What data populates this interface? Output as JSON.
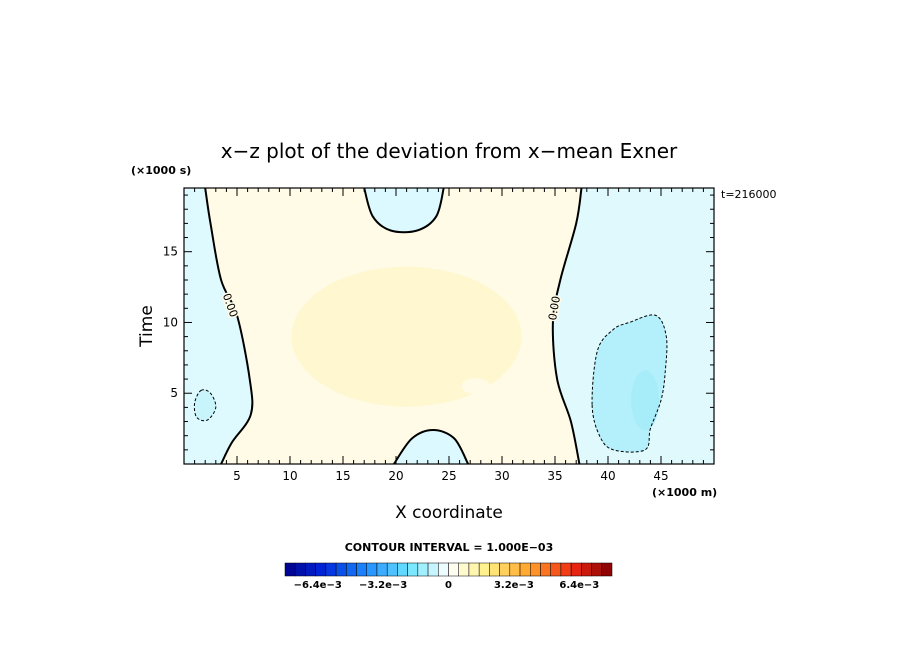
{
  "chart_data": {
    "type": "heatmap",
    "title": "x−z plot of the deviation from x−mean Exner",
    "xlabel": "X coordinate",
    "ylabel": "Time",
    "x_unit": "(×1000 m)",
    "y_unit": "(×1000 s)",
    "time_label": "t=216000",
    "contour_interval_label": "CONTOUR INTERVAL = 1.000E−03",
    "contour_interval": 0.001,
    "xlim": [
      0,
      50
    ],
    "ylim": [
      0,
      19.5
    ],
    "x_ticks": [
      5,
      10,
      15,
      20,
      25,
      30,
      35,
      40,
      45
    ],
    "y_ticks": [
      5,
      10,
      15
    ],
    "contour_labels": [
      "0.00",
      "0.00"
    ],
    "colorbar": {
      "min": -0.008,
      "max": 0.008,
      "levels": 32,
      "tick_values": [
        -0.0064,
        -0.0032,
        0,
        0.0032,
        0.0064
      ],
      "tick_labels": [
        "−6.4e−3",
        "−3.2e−3",
        "0",
        "3.2e−3",
        "6.4e−3"
      ]
    },
    "zero_contour_left": [
      [
        2.0,
        19.5
      ],
      [
        2.5,
        17
      ],
      [
        3.5,
        13
      ],
      [
        5.0,
        10.5
      ],
      [
        6.2,
        6
      ],
      [
        6.3,
        3.5
      ],
      [
        4.5,
        1.5
      ],
      [
        3.5,
        0
      ]
    ],
    "zero_contour_right": [
      [
        37.5,
        19.5
      ],
      [
        37.0,
        17
      ],
      [
        35.5,
        13
      ],
      [
        34.8,
        10
      ],
      [
        35.2,
        6
      ],
      [
        36.5,
        3
      ],
      [
        37.3,
        0
      ]
    ],
    "zero_contour_top": [
      [
        17.0,
        19.5
      ],
      [
        17.8,
        17.5
      ],
      [
        19.5,
        16.5
      ],
      [
        22.0,
        16.5
      ],
      [
        23.8,
        17.5
      ],
      [
        24.5,
        19.5
      ]
    ],
    "zero_contour_bottom": [
      [
        19.8,
        0
      ],
      [
        21.5,
        1.8
      ],
      [
        23.5,
        2.4
      ],
      [
        25.5,
        1.8
      ],
      [
        26.8,
        0
      ]
    ],
    "neg_contour_left": [
      [
        1.6,
        5.2
      ],
      [
        2.5,
        5.0
      ],
      [
        3.0,
        4.0
      ],
      [
        2.2,
        3.1
      ],
      [
        1.2,
        3.3
      ],
      [
        1.0,
        4.3
      ]
    ],
    "neg_contour_right": [
      [
        38.5,
        4.2
      ],
      [
        39.0,
        8.0
      ],
      [
        40.5,
        9.5
      ],
      [
        42.0,
        10.0
      ],
      [
        44.5,
        10.5
      ],
      [
        45.5,
        9.0
      ],
      [
        45.4,
        6.5
      ],
      [
        45.0,
        4.5
      ],
      [
        44.0,
        2.5
      ],
      [
        43.5,
        1.0
      ],
      [
        40.5,
        1.0
      ],
      [
        39.2,
        2.0
      ]
    ]
  }
}
